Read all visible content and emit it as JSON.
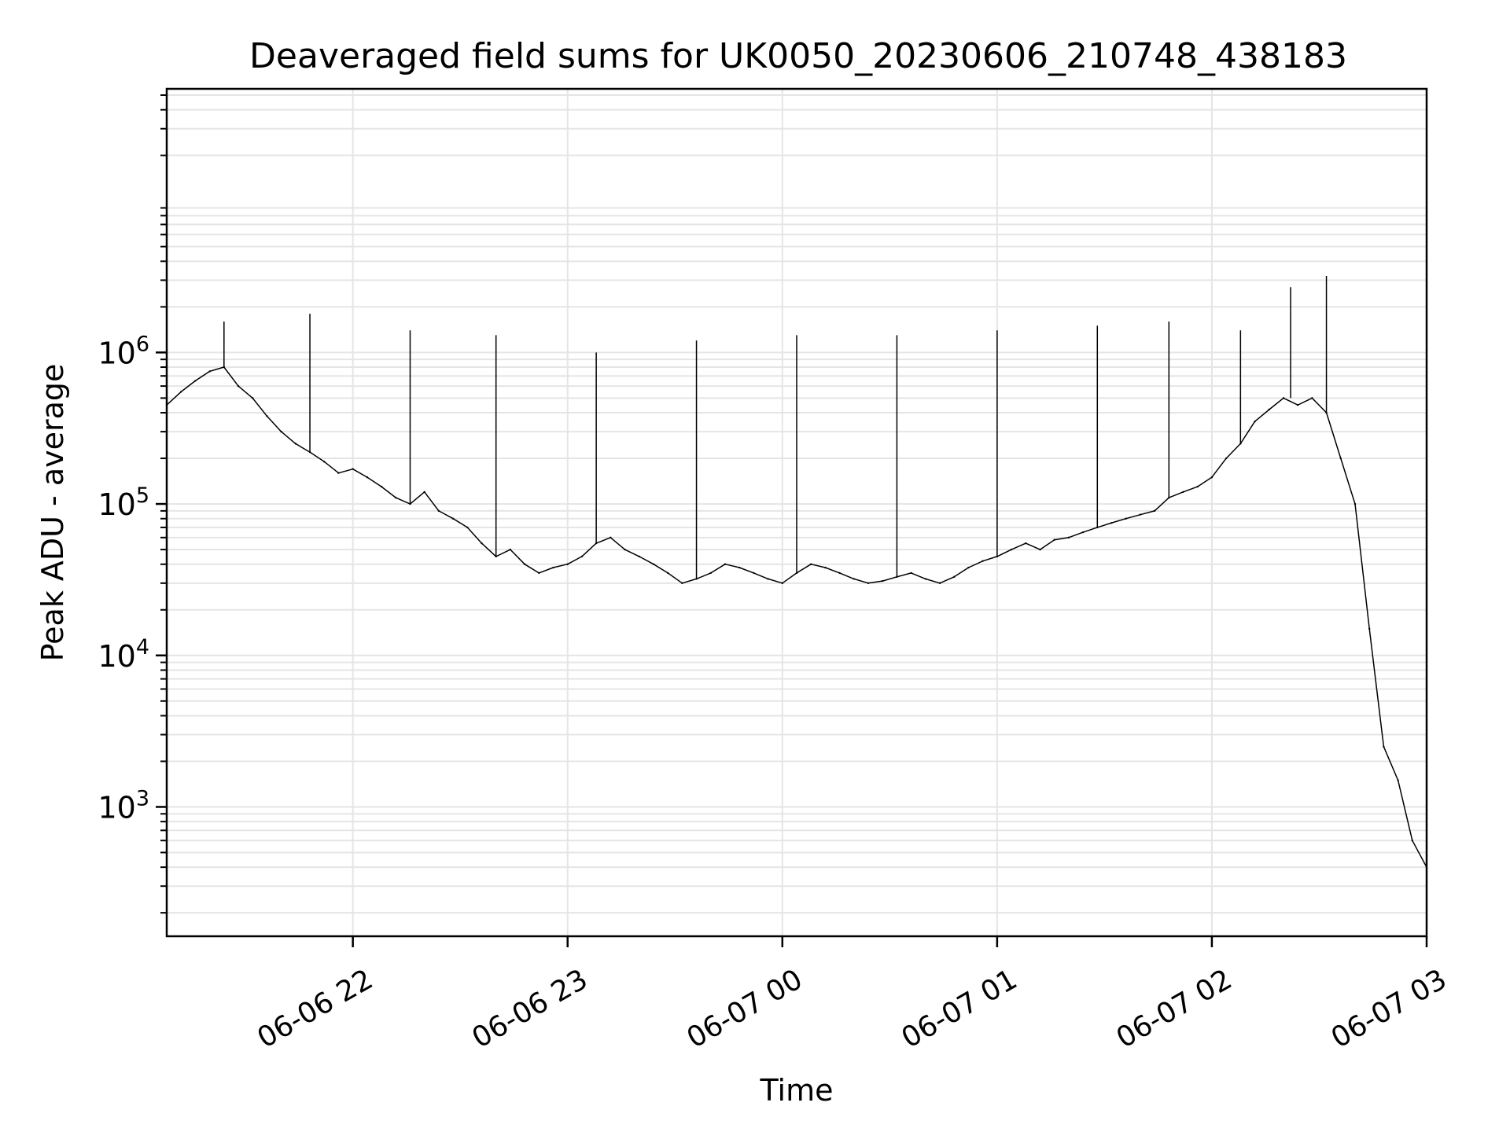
{
  "chart_data": {
    "type": "line",
    "title": "Deaveraged field sums for UK0050_20230606_210748_438183",
    "xlabel": "Time",
    "ylabel": "Peak ADU - average",
    "yscale": "log",
    "ylim": [
      140,
      55000000
    ],
    "xlim": [
      "2023-06-06 21:08",
      "2023-06-07 03:00"
    ],
    "grid": true,
    "line_color": "#000000",
    "grid_color": "#e5e5e5",
    "x_ticks": [
      {
        "at": "2023-06-06 22:00",
        "label": "06-06 22"
      },
      {
        "at": "2023-06-06 23:00",
        "label": "06-06 23"
      },
      {
        "at": "2023-06-07 00:00",
        "label": "06-07 00"
      },
      {
        "at": "2023-06-07 01:00",
        "label": "06-07 01"
      },
      {
        "at": "2023-06-07 02:00",
        "label": "06-07 02"
      },
      {
        "at": "2023-06-07 03:00",
        "label": "06-07 03"
      }
    ],
    "y_ticks": [
      {
        "value": 1000,
        "base": "10",
        "exp": "3"
      },
      {
        "value": 10000,
        "base": "10",
        "exp": "4"
      },
      {
        "value": 100000,
        "base": "10",
        "exp": "5"
      },
      {
        "value": 1000000,
        "base": "10",
        "exp": "6"
      }
    ],
    "series": [
      {
        "x": [
          "2023-06-06 21:08",
          "2023-06-06 21:12",
          "2023-06-06 21:16",
          "2023-06-06 21:20",
          "2023-06-06 21:24",
          "2023-06-06 21:28",
          "2023-06-06 21:32",
          "2023-06-06 21:36",
          "2023-06-06 21:40",
          "2023-06-06 21:44",
          "2023-06-06 21:48",
          "2023-06-06 21:52",
          "2023-06-06 21:56",
          "2023-06-06 22:00",
          "2023-06-06 22:04",
          "2023-06-06 22:08",
          "2023-06-06 22:12",
          "2023-06-06 22:16",
          "2023-06-06 22:20",
          "2023-06-06 22:24",
          "2023-06-06 22:28",
          "2023-06-06 22:32",
          "2023-06-06 22:36",
          "2023-06-06 22:40",
          "2023-06-06 22:44",
          "2023-06-06 22:48",
          "2023-06-06 22:52",
          "2023-06-06 22:56",
          "2023-06-06 23:00",
          "2023-06-06 23:04",
          "2023-06-06 23:08",
          "2023-06-06 23:12",
          "2023-06-06 23:16",
          "2023-06-06 23:20",
          "2023-06-06 23:24",
          "2023-06-06 23:28",
          "2023-06-06 23:32",
          "2023-06-06 23:36",
          "2023-06-06 23:40",
          "2023-06-06 23:44",
          "2023-06-06 23:48",
          "2023-06-06 23:52",
          "2023-06-06 23:56",
          "2023-06-07 00:00",
          "2023-06-07 00:04",
          "2023-06-07 00:08",
          "2023-06-07 00:12",
          "2023-06-07 00:16",
          "2023-06-07 00:20",
          "2023-06-07 00:24",
          "2023-06-07 00:28",
          "2023-06-07 00:32",
          "2023-06-07 00:36",
          "2023-06-07 00:40",
          "2023-06-07 00:44",
          "2023-06-07 00:48",
          "2023-06-07 00:52",
          "2023-06-07 00:56",
          "2023-06-07 01:00",
          "2023-06-07 01:04",
          "2023-06-07 01:08",
          "2023-06-07 01:12",
          "2023-06-07 01:16",
          "2023-06-07 01:20",
          "2023-06-07 01:24",
          "2023-06-07 01:28",
          "2023-06-07 01:32",
          "2023-06-07 01:36",
          "2023-06-07 01:40",
          "2023-06-07 01:44",
          "2023-06-07 01:48",
          "2023-06-07 01:52",
          "2023-06-07 01:56",
          "2023-06-07 02:00",
          "2023-06-07 02:04",
          "2023-06-07 02:08",
          "2023-06-07 02:12",
          "2023-06-07 02:16",
          "2023-06-07 02:20",
          "2023-06-07 02:24",
          "2023-06-07 02:28",
          "2023-06-07 02:32",
          "2023-06-07 02:36",
          "2023-06-07 02:40",
          "2023-06-07 02:44",
          "2023-06-07 02:48",
          "2023-06-07 02:52",
          "2023-06-07 02:56",
          "2023-06-07 03:00"
        ],
        "values": [
          450000,
          550000,
          650000,
          750000,
          800000,
          600000,
          500000,
          380000,
          300000,
          250000,
          220000,
          190000,
          160000,
          170000,
          150000,
          130000,
          110000,
          100000,
          120000,
          90000,
          80000,
          70000,
          55000,
          45000,
          50000,
          40000,
          35000,
          38000,
          40000,
          45000,
          55000,
          60000,
          50000,
          45000,
          40000,
          35000,
          30000,
          32000,
          35000,
          40000,
          38000,
          35000,
          32000,
          30000,
          35000,
          40000,
          38000,
          35000,
          32000,
          30000,
          31000,
          33000,
          35000,
          32000,
          30000,
          33000,
          38000,
          42000,
          45000,
          50000,
          55000,
          50000,
          58000,
          60000,
          65000,
          70000,
          75000,
          80000,
          85000,
          90000,
          110000,
          120000,
          130000,
          150000,
          200000,
          250000,
          350000,
          420000,
          500000,
          450000,
          500000,
          400000,
          200000,
          100000,
          15000,
          2500,
          1500,
          600,
          400
        ],
        "spikes": [
          {
            "x": "2023-06-06 21:24",
            "value": 1600000
          },
          {
            "x": "2023-06-06 21:48",
            "value": 1800000
          },
          {
            "x": "2023-06-06 22:16",
            "value": 1400000
          },
          {
            "x": "2023-06-06 22:40",
            "value": 1300000
          },
          {
            "x": "2023-06-06 23:08",
            "value": 1000000
          },
          {
            "x": "2023-06-06 23:36",
            "value": 1200000
          },
          {
            "x": "2023-06-07 00:04",
            "value": 1300000
          },
          {
            "x": "2023-06-07 00:32",
            "value": 1300000
          },
          {
            "x": "2023-06-07 01:00",
            "value": 1400000
          },
          {
            "x": "2023-06-07 01:28",
            "value": 1500000
          },
          {
            "x": "2023-06-07 01:48",
            "value": 1600000
          },
          {
            "x": "2023-06-07 02:08",
            "value": 1400000
          },
          {
            "x": "2023-06-07 02:22",
            "value": 2700000
          },
          {
            "x": "2023-06-07 02:32",
            "value": 3200000
          }
        ]
      }
    ]
  }
}
